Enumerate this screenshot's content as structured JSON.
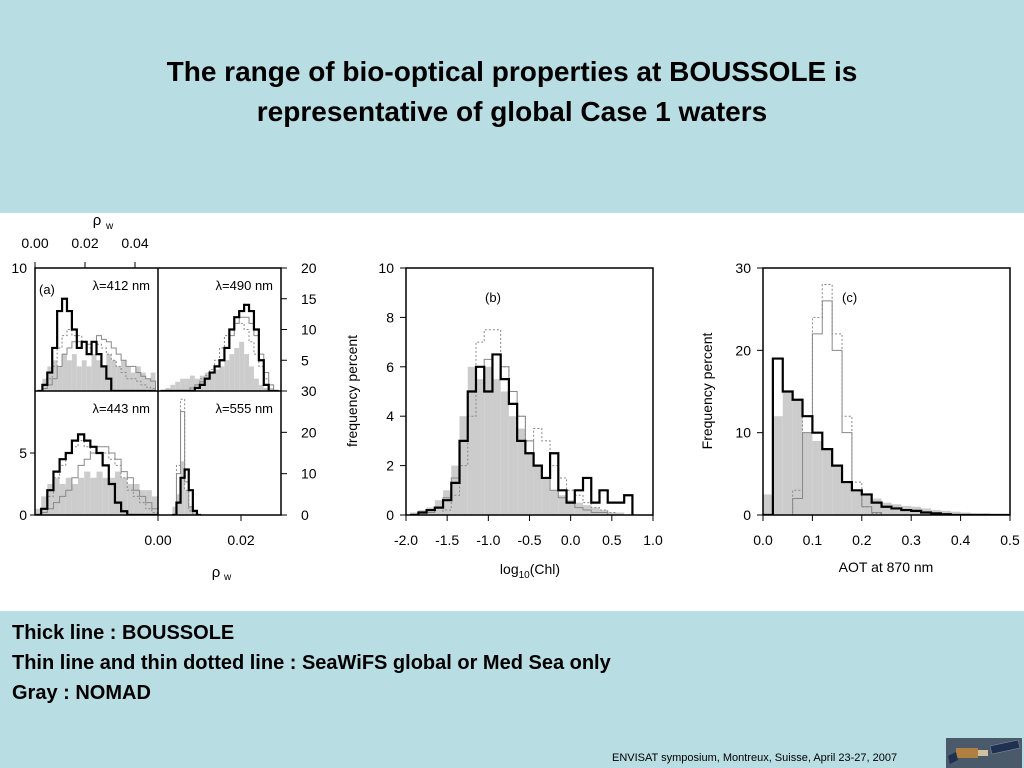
{
  "slide": {
    "title_line1": "The range of bio-optical properties at  BOUSSOLE is",
    "title_line2": "representative of global Case 1 waters",
    "legend": [
      "Thick line : BOUSSOLE",
      "Thin line and thin dotted line : SeaWiFS global or Med Sea only",
      "Gray : NOMAD"
    ],
    "footer": "ENVISAT symposium, Montreux, Suisse, April 23-27, 2007"
  },
  "colors": {
    "background": "#b8dde3",
    "gray_fill": "#cccccc",
    "boussole": "#000000",
    "seawifs": "#888888"
  },
  "chart_data": [
    {
      "id": "a",
      "type": "histogram-panels",
      "panel_label": "(a)",
      "xlabel_top": "ρw",
      "xlabel_bottom": "ρw",
      "top_ticks": [
        "0.00",
        "0.02",
        "0.04"
      ],
      "bottom_ticks": [
        "0.00",
        "0.02"
      ],
      "panels": [
        {
          "label": "λ=412 nm",
          "xlim": [
            0,
            0.05
          ],
          "ylim": [
            0,
            10
          ],
          "yticks_left": [
            "10"
          ],
          "yticks_right": [],
          "x": [
            0.002,
            0.004,
            0.006,
            0.008,
            0.01,
            0.012,
            0.014,
            0.016,
            0.018,
            0.02,
            0.022,
            0.024,
            0.026,
            0.028,
            0.03,
            0.032,
            0.034,
            0.036,
            0.038,
            0.04,
            0.042,
            0.044,
            0.046,
            0.048
          ],
          "nomad": [
            0,
            1,
            2,
            2.5,
            2,
            3,
            2.5,
            3,
            2,
            2.5,
            2,
            3,
            2.5,
            2,
            3,
            2.5,
            2,
            2.5,
            2,
            1.5,
            2,
            1.5,
            1,
            1.5
          ],
          "boussole": [
            0,
            0.5,
            1.5,
            3.5,
            6.5,
            7.5,
            6.5,
            5,
            3.5,
            4,
            3,
            4,
            3,
            2,
            1,
            0,
            0,
            0,
            0,
            0,
            0,
            0,
            0,
            0
          ],
          "seawifs": [
            0,
            0.2,
            0.5,
            1,
            2,
            3,
            3.5,
            4,
            4,
            4,
            3.8,
            4,
            4.5,
            4.2,
            4,
            3.5,
            3,
            2.5,
            2,
            2,
            1.5,
            1.2,
            1,
            0.8
          ],
          "seawifs_dotted": [
            0,
            0.5,
            1,
            2,
            3.5,
            4.5,
            5,
            4.5,
            4.5,
            4,
            3.5,
            4,
            3.8,
            3.5,
            3,
            2.5,
            2,
            1.5,
            1,
            1,
            0.8,
            0.5,
            0.3,
            0.2
          ]
        },
        {
          "label": "λ=490 nm",
          "xlim": [
            0,
            0.025
          ],
          "ylim": [
            0,
            20
          ],
          "yticks_left": [],
          "yticks_right": [
            "20",
            "15",
            "10",
            "5"
          ],
          "x": [
            0.001,
            0.002,
            0.003,
            0.004,
            0.005,
            0.006,
            0.007,
            0.008,
            0.009,
            0.01,
            0.011,
            0.012,
            0.013,
            0.014,
            0.015,
            0.016,
            0.017,
            0.018,
            0.019,
            0.02,
            0.021,
            0.022,
            0.023,
            0.024
          ],
          "nomad": [
            0,
            0.5,
            1,
            1.5,
            2,
            2,
            2.5,
            2,
            2.5,
            3,
            3,
            3.5,
            4,
            5,
            6,
            7,
            8,
            6,
            4,
            2,
            1,
            0.5,
            0.5,
            0
          ],
          "boussole": [
            0,
            0,
            0,
            0,
            0,
            0,
            0,
            0.5,
            1,
            2,
            3,
            4,
            5,
            7,
            10,
            12,
            13,
            14,
            13,
            10,
            5,
            1,
            0,
            0
          ],
          "seawifs": [
            0,
            0,
            0,
            0,
            0,
            0,
            0.5,
            1,
            1.5,
            2,
            3,
            4,
            5,
            7,
            9,
            11,
            12,
            12,
            11,
            9,
            6,
            3,
            1,
            0
          ],
          "seawifs_dotted": [
            0,
            0,
            0,
            0,
            0,
            0,
            0.5,
            1,
            2,
            2.5,
            3.5,
            5,
            7,
            9,
            10,
            11,
            11,
            10,
            8,
            6,
            4,
            2,
            1,
            0
          ]
        },
        {
          "label": "λ=443 nm",
          "xlim": [
            0,
            0.04
          ],
          "ylim": [
            0,
            10
          ],
          "yticks_left": [
            "10",
            "5",
            "0"
          ],
          "yticks_right": [],
          "x": [
            0.001,
            0.003,
            0.005,
            0.007,
            0.009,
            0.011,
            0.013,
            0.015,
            0.017,
            0.019,
            0.021,
            0.023,
            0.025,
            0.027,
            0.029,
            0.031,
            0.033,
            0.035,
            0.037,
            0.039
          ],
          "nomad": [
            0.5,
            1.5,
            2.5,
            3,
            2.5,
            3,
            2.5,
            3,
            3.5,
            3,
            3.5,
            3,
            3,
            3.5,
            3,
            2.5,
            2.5,
            2,
            2,
            1.5
          ],
          "boussole": [
            0,
            0.5,
            2,
            3.5,
            4.5,
            5,
            6,
            6.5,
            6,
            5.5,
            5,
            4,
            2.5,
            1,
            0.3,
            0,
            0,
            0,
            0,
            0
          ],
          "seawifs": [
            0,
            0.2,
            0.5,
            1,
            1.5,
            2,
            3,
            4,
            4.5,
            5,
            5.5,
            5.5,
            5,
            4.5,
            3.5,
            3,
            2,
            1.5,
            1,
            0.5
          ],
          "seawifs_dotted": [
            0,
            0.5,
            1.5,
            3,
            4,
            5,
            5.5,
            6,
            5.5,
            5,
            5,
            5,
            4.5,
            4,
            3,
            2,
            1.5,
            1,
            0.5,
            0.2
          ]
        },
        {
          "label": "λ=555 nm",
          "xlim": [
            0,
            0.03
          ],
          "ylim": [
            0,
            30
          ],
          "yticks_left": [],
          "yticks_right": [
            "30",
            "20",
            "10",
            "0"
          ],
          "x": [
            0.004,
            0.005,
            0.006,
            0.007,
            0.008,
            0.009,
            0.01
          ],
          "nomad": [
            2,
            5,
            13,
            6,
            2,
            1,
            0
          ],
          "boussole": [
            0,
            3,
            9,
            11,
            6,
            1,
            0
          ],
          "seawifs": [
            0,
            10,
            25,
            8,
            2,
            0,
            0
          ],
          "seawifs_dotted": [
            0,
            12,
            28,
            6,
            1,
            0,
            0
          ]
        }
      ]
    },
    {
      "id": "b",
      "type": "histogram",
      "panel_label": "(b)",
      "xlabel": "log10(Chl)",
      "ylabel": "frequency percent",
      "xlim": [
        -2.0,
        1.0
      ],
      "ylim": [
        0,
        10
      ],
      "xticks": [
        "-2.0",
        "-1.5",
        "-1.0",
        "-0.5",
        "0.0",
        "0.5",
        "1.0"
      ],
      "yticks": [
        "0",
        "2",
        "4",
        "6",
        "8",
        "10"
      ],
      "x": [
        -1.9,
        -1.8,
        -1.7,
        -1.6,
        -1.5,
        -1.4,
        -1.3,
        -1.2,
        -1.1,
        -1.0,
        -0.9,
        -0.8,
        -0.7,
        -0.6,
        -0.5,
        -0.4,
        -0.3,
        -0.2,
        -0.1,
        0.0,
        0.1,
        0.2,
        0.3,
        0.4,
        0.5,
        0.6,
        0.7
      ],
      "nomad": [
        0.1,
        0.2,
        0.3,
        0.6,
        1,
        2,
        4,
        6,
        5.5,
        6,
        5.5,
        5,
        4,
        3.5,
        2.5,
        2,
        1.5,
        1,
        0.8,
        0.6,
        0.5,
        0.4,
        0.3,
        0.2,
        0.1,
        0.1,
        0
      ],
      "boussole": [
        0,
        0.1,
        0.2,
        0.3,
        0.6,
        1.3,
        3,
        5,
        6,
        5,
        6.5,
        5.5,
        4.5,
        3,
        2.5,
        2,
        1.5,
        2.5,
        1,
        0.5,
        1,
        1.5,
        0.5,
        1,
        0.5,
        0.5,
        0.8
      ],
      "seawifs": [
        0,
        0,
        0.1,
        0.3,
        0.7,
        1.5,
        3,
        5,
        6,
        6.3,
        6.5,
        6,
        5,
        4,
        3,
        2,
        1.5,
        1,
        0.7,
        0.5,
        0.3,
        0.2,
        0.1,
        0.1,
        0,
        0,
        0
      ],
      "seawifs_dotted": [
        0,
        0,
        0,
        0,
        0.2,
        0.8,
        2,
        4,
        7,
        7.5,
        7.5,
        6,
        4.5,
        4,
        3,
        3.5,
        3,
        2,
        1.5,
        1,
        0.8,
        0.5,
        0.3,
        0.2,
        0.1,
        0,
        0
      ]
    },
    {
      "id": "c",
      "type": "histogram",
      "panel_label": "(c)",
      "xlabel": "AOT at 870 nm",
      "ylabel": "Frequency percent",
      "xlim": [
        0,
        0.5
      ],
      "ylim": [
        0,
        30
      ],
      "xticks": [
        "0.0",
        "0.1",
        "0.2",
        "0.3",
        "0.4",
        "0.5"
      ],
      "yticks": [
        "0",
        "10",
        "20",
        "30"
      ],
      "x": [
        0.01,
        0.03,
        0.05,
        0.07,
        0.09,
        0.11,
        0.13,
        0.15,
        0.17,
        0.19,
        0.21,
        0.23,
        0.25,
        0.27,
        0.29,
        0.31,
        0.33,
        0.35,
        0.37,
        0.39,
        0.41,
        0.43,
        0.45,
        0.47,
        0.49
      ],
      "nomad": [
        2.5,
        12,
        15,
        14,
        10,
        9,
        8,
        6,
        4,
        3,
        2.5,
        2,
        1.5,
        1.3,
        1.1,
        1,
        0.8,
        0.6,
        0.5,
        0.4,
        0.3,
        0.2,
        0.2,
        0.1,
        0.1
      ],
      "boussole": [
        0,
        19,
        15,
        14,
        12,
        10,
        8,
        6,
        4,
        3,
        2.5,
        1.5,
        1,
        0.8,
        0.6,
        0.5,
        0.3,
        0.2,
        0.1,
        0,
        0,
        0,
        0,
        0,
        0
      ],
      "seawifs": [
        0,
        0,
        0,
        2,
        10,
        22,
        26,
        20,
        10,
        3,
        1,
        0.3,
        0,
        0,
        0,
        0,
        0,
        0,
        0,
        0,
        0,
        0,
        0,
        0,
        0
      ],
      "seawifs_dotted": [
        0,
        0,
        0,
        3,
        12,
        24,
        28,
        22,
        12,
        4,
        1,
        0.2,
        0,
        0,
        0,
        0,
        0,
        0,
        0,
        0,
        0,
        0,
        0,
        0,
        0
      ]
    }
  ]
}
